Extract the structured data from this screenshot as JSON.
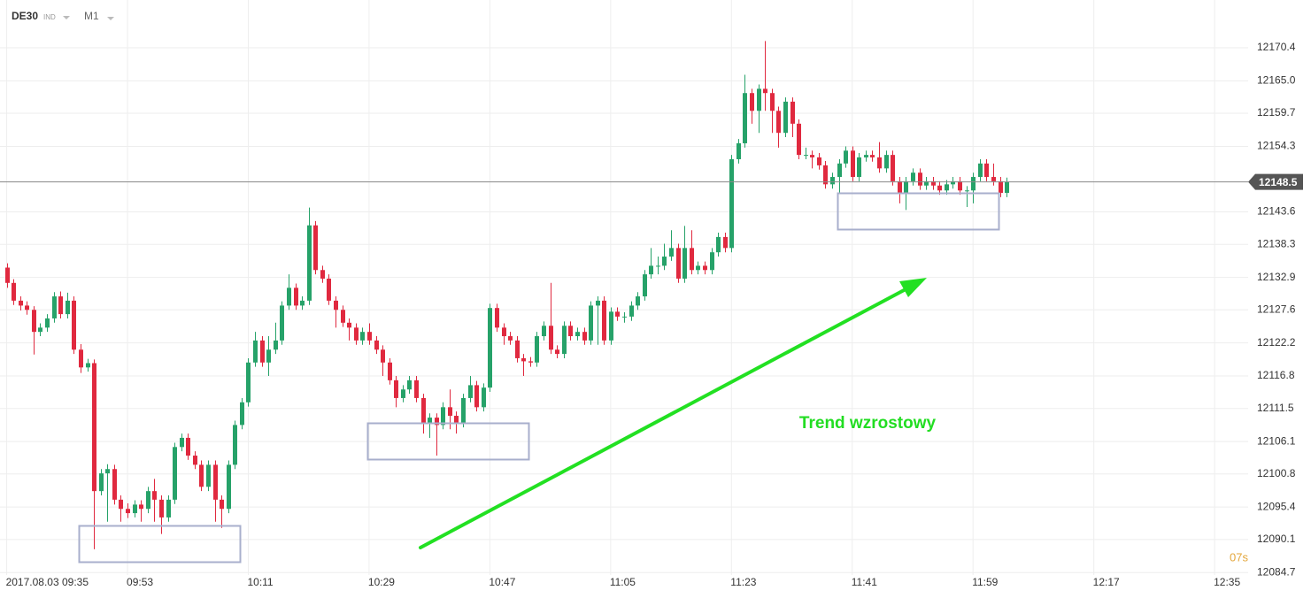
{
  "header": {
    "symbol": "DE30",
    "market": "IND",
    "timeframe": "M1"
  },
  "timer": "07s",
  "chart_data": {
    "type": "candlestick",
    "annotation": "Trend wzrostowy",
    "up_color": "#26a269",
    "down_color": "#e0293f",
    "grid": true,
    "current_price": 12148.5,
    "xlim": [
      574,
      760
    ],
    "xticks": [
      {
        "value": 575,
        "label": "2017.08.03 09:35"
      },
      {
        "value": 593,
        "label": "09:53"
      },
      {
        "value": 611,
        "label": "10:11"
      },
      {
        "value": 629,
        "label": "10:29"
      },
      {
        "value": 647,
        "label": "10:47"
      },
      {
        "value": 665,
        "label": "11:05"
      },
      {
        "value": 683,
        "label": "11:23"
      },
      {
        "value": 701,
        "label": "11:41"
      },
      {
        "value": 719,
        "label": "11:59"
      },
      {
        "value": 737,
        "label": "12:17"
      },
      {
        "value": 755,
        "label": "12:35"
      }
    ],
    "ylim": [
      12084.3,
      12178.2
    ],
    "yticks": [
      12170.4,
      {
        "value": 12165,
        "label": "12165.0"
      },
      12159.7,
      12154.3,
      12143.6,
      12138.3,
      12132.9,
      12127.6,
      12122.2,
      12116.8,
      12111.5,
      12106.1,
      12100.8,
      12095.4,
      12090.1,
      12084.7
    ],
    "x": [
      575,
      576,
      577,
      578,
      579,
      580,
      581,
      582,
      583,
      584,
      585,
      586,
      587,
      588,
      589,
      590,
      591,
      592,
      593,
      594,
      595,
      596,
      597,
      598,
      599,
      600,
      601,
      602,
      603,
      604,
      605,
      606,
      607,
      608,
      609,
      610,
      611,
      612,
      613,
      614,
      615,
      616,
      617,
      618,
      619,
      620,
      621,
      622,
      623,
      624,
      625,
      626,
      627,
      628,
      629,
      630,
      631,
      632,
      633,
      634,
      635,
      636,
      637,
      638,
      639,
      640,
      641,
      642,
      643,
      644,
      645,
      646,
      647,
      648,
      649,
      650,
      651,
      652,
      653,
      654,
      655,
      656,
      657,
      658,
      659,
      660,
      661,
      662,
      663,
      664,
      665,
      666,
      667,
      668,
      669,
      670,
      671,
      672,
      673,
      674,
      675,
      676,
      677,
      678,
      679,
      680,
      681,
      682,
      683,
      684,
      685,
      686,
      687,
      688,
      689,
      690,
      691,
      692,
      693,
      694,
      695,
      696,
      697,
      698,
      699,
      700,
      701,
      702,
      703,
      704,
      705,
      706,
      707,
      708,
      709,
      710,
      711,
      712,
      713,
      714,
      715,
      716,
      717,
      718,
      719,
      720,
      721,
      722,
      723,
      724
    ],
    "open": [
      12134.5,
      12132.0,
      12129.1,
      12128.3,
      12127.6,
      12124.0,
      12124.7,
      12126.2,
      12129.8,
      12126.9,
      12129.1,
      12121.1,
      12118.2,
      12118.9,
      12098.0,
      12100.9,
      12101.6,
      12096.6,
      12095.1,
      12094.4,
      12095.8,
      12095.1,
      12098.0,
      12096.6,
      12093.7,
      12096.6,
      12105.2,
      12106.7,
      12103.8,
      12102.3,
      12098.7,
      12102.3,
      12096.6,
      12095.1,
      12102.3,
      12108.8,
      12112.5,
      12119.0,
      12122.6,
      12119.0,
      12121.1,
      12122.6,
      12128.3,
      12131.2,
      12128.3,
      12129.1,
      12141.4,
      12134.1,
      12132.7,
      12129.1,
      12127.6,
      12125.5,
      12124.7,
      12122.6,
      12124.0,
      12122.6,
      12121.1,
      12119.0,
      12116.1,
      12113.2,
      12114.6,
      12116.1,
      12113.2,
      12109.1,
      12110.0,
      12108.8,
      12111.7,
      12110.3,
      12109.1,
      12113.2,
      12115.3,
      12111.7,
      12114.9,
      12127.9,
      12124.7,
      12123.3,
      12122.6,
      12119.7,
      12119.2,
      12119.0,
      12123.3,
      12125.0,
      12121.1,
      12120.4,
      12125.0,
      12123.3,
      12124.0,
      12122.6,
      12128.3,
      12129.1,
      12122.6,
      12127.3,
      12126.5,
      12126.5,
      12128.3,
      12129.8,
      12133.4,
      12134.8,
      12134.8,
      12136.3,
      12137.7,
      12132.7,
      12137.7,
      12134.1,
      12134.8,
      12134.1,
      12137.0,
      12139.5,
      12137.7,
      12152.2,
      12154.8,
      12163.0,
      12160.1,
      12163.7,
      12163.0,
      12160.1,
      12156.5,
      12161.6,
      12158.0,
      12152.9,
      12152.9,
      12152.5,
      12151.2,
      12148.1,
      12149.3,
      12151.5,
      12153.6,
      12149.3,
      12152.5,
      12152.9,
      12152.5,
      12150.7,
      12152.9,
      12148.6,
      12146.7,
      12148.6,
      12150.0,
      12147.9,
      12148.6,
      12147.9,
      12147.1,
      12148.1,
      12148.6,
      12147.1,
      12147.1,
      12149.3,
      12151.5,
      12149.3,
      12148.6,
      12146.7
    ],
    "high": [
      12135.2,
      12132.6,
      12129.8,
      12129.0,
      12128.2,
      12125.4,
      12126.9,
      12130.5,
      12130.6,
      12130.4,
      12129.8,
      12122.0,
      12119.6,
      12119.5,
      12101.6,
      12102.4,
      12102.3,
      12097.3,
      12096.0,
      12096.5,
      12096.5,
      12098.7,
      12100.0,
      12097.3,
      12097.3,
      12105.9,
      12107.4,
      12107.4,
      12104.5,
      12103.0,
      12103.0,
      12103.0,
      12097.3,
      12103.0,
      12109.5,
      12113.2,
      12119.7,
      12124.0,
      12123.3,
      12123.3,
      12125.5,
      12129.0,
      12133.4,
      12131.9,
      12129.8,
      12144.3,
      12142.1,
      12134.8,
      12133.4,
      12129.8,
      12128.3,
      12126.2,
      12125.4,
      12124.7,
      12125.4,
      12123.3,
      12121.8,
      12119.7,
      12116.8,
      12115.3,
      12116.8,
      12116.8,
      12113.9,
      12110.7,
      12110.7,
      12112.5,
      12114.6,
      12111.0,
      12113.9,
      12116.8,
      12116.0,
      12115.6,
      12128.6,
      12128.6,
      12125.4,
      12124.0,
      12123.3,
      12120.4,
      12119.9,
      12124.0,
      12125.7,
      12132.0,
      12121.8,
      12125.7,
      12125.7,
      12124.7,
      12124.7,
      12129.0,
      12129.8,
      12129.8,
      12128.0,
      12128.0,
      12127.2,
      12129.0,
      12130.5,
      12134.1,
      12137.7,
      12136.3,
      12138.4,
      12140.6,
      12138.4,
      12141.3,
      12140.6,
      12135.5,
      12135.5,
      12137.7,
      12140.2,
      12140.2,
      12152.9,
      12155.5,
      12166.0,
      12163.7,
      12164.4,
      12171.5,
      12163.7,
      12160.8,
      12162.3,
      12162.3,
      12158.7,
      12154.1,
      12153.6,
      12153.2,
      12151.9,
      12150.0,
      12152.2,
      12154.3,
      12154.3,
      12153.2,
      12153.6,
      12153.6,
      12155.0,
      12153.6,
      12153.6,
      12149.3,
      12149.3,
      12150.7,
      12150.7,
      12149.3,
      12149.3,
      12148.6,
      12148.8,
      12149.3,
      12149.3,
      12147.8,
      12150.0,
      12152.2,
      12152.2,
      12151.5,
      12149.3,
      12149.2
    ],
    "low": [
      12131.2,
      12128.4,
      12127.5,
      12126.8,
      12120.3,
      12123.3,
      12124.0,
      12125.5,
      12126.2,
      12126.2,
      12120.4,
      12117.3,
      12117.5,
      12088.5,
      12097.3,
      12093.0,
      12095.8,
      12093.0,
      12093.6,
      12093.7,
      12093.0,
      12094.4,
      12093.0,
      12091.0,
      12093.0,
      12095.9,
      12104.5,
      12103.1,
      12101.6,
      12098.0,
      12098.0,
      12093.0,
      12092.0,
      12094.4,
      12101.6,
      12108.1,
      12111.8,
      12118.3,
      12118.3,
      12116.8,
      12120.4,
      12121.9,
      12127.6,
      12127.6,
      12127.6,
      12128.4,
      12133.4,
      12132.0,
      12128.4,
      12124.7,
      12124.8,
      12122.6,
      12121.9,
      12121.9,
      12121.9,
      12120.4,
      12116.8,
      12115.4,
      12111.7,
      12112.5,
      12113.9,
      12112.5,
      12107.4,
      12106.7,
      12103.8,
      12108.1,
      12108.1,
      12107.4,
      12108.4,
      12112.5,
      12111.0,
      12111.0,
      12114.2,
      12124.0,
      12121.9,
      12121.9,
      12119.0,
      12116.8,
      12118.3,
      12118.3,
      12122.6,
      12120.4,
      12119.7,
      12119.7,
      12122.6,
      12122.6,
      12121.9,
      12121.9,
      12121.9,
      12121.9,
      12121.9,
      12125.8,
      12125.5,
      12125.8,
      12127.6,
      12129.1,
      12132.7,
      12133.4,
      12134.1,
      12135.6,
      12132.0,
      12132.0,
      12133.4,
      12133.4,
      12133.4,
      12133.4,
      12136.3,
      12137.0,
      12137.0,
      12151.5,
      12154.1,
      12158.0,
      12156.5,
      12160.1,
      12156.5,
      12154.1,
      12155.8,
      12155.8,
      12152.2,
      12152.2,
      12150.7,
      12150.5,
      12147.4,
      12147.4,
      12146.7,
      12150.8,
      12148.6,
      12148.6,
      12151.8,
      12151.8,
      12150.0,
      12150.0,
      12147.9,
      12145.0,
      12143.9,
      12147.9,
      12147.2,
      12147.2,
      12147.2,
      12146.4,
      12146.4,
      12147.4,
      12146.4,
      12144.4,
      12145.0,
      12148.6,
      12148.6,
      12147.9,
      12146.0,
      12146.0
    ],
    "close": [
      12132.0,
      12129.1,
      12128.3,
      12127.6,
      12124.0,
      12124.7,
      12126.2,
      12129.8,
      12126.9,
      12129.1,
      12121.1,
      12118.2,
      12118.9,
      12098.0,
      12100.9,
      12101.6,
      12096.6,
      12095.1,
      12094.4,
      12095.8,
      12095.1,
      12098.0,
      12096.6,
      12093.7,
      12096.6,
      12105.2,
      12106.7,
      12103.8,
      12102.3,
      12098.7,
      12102.3,
      12096.6,
      12095.1,
      12102.3,
      12108.8,
      12112.5,
      12119.0,
      12122.6,
      12119.0,
      12121.1,
      12122.6,
      12128.3,
      12131.2,
      12128.3,
      12129.1,
      12141.4,
      12134.1,
      12132.7,
      12129.1,
      12127.6,
      12125.5,
      12124.7,
      12122.6,
      12124.0,
      12122.6,
      12121.1,
      12119.0,
      12116.1,
      12113.2,
      12114.6,
      12116.1,
      12113.2,
      12109.1,
      12110.0,
      12108.8,
      12111.7,
      12110.3,
      12109.1,
      12113.2,
      12115.3,
      12111.7,
      12114.9,
      12127.9,
      12124.7,
      12123.3,
      12122.6,
      12119.7,
      12119.2,
      12119.0,
      12123.3,
      12125.0,
      12121.1,
      12120.4,
      12125.0,
      12123.3,
      12124.0,
      12122.6,
      12128.3,
      12129.1,
      12122.6,
      12127.3,
      12126.5,
      12126.5,
      12128.3,
      12129.8,
      12133.4,
      12134.8,
      12134.8,
      12136.3,
      12137.7,
      12132.7,
      12137.7,
      12134.1,
      12134.8,
      12134.1,
      12137.0,
      12139.5,
      12137.7,
      12152.2,
      12154.8,
      12163.0,
      12160.1,
      12163.7,
      12163.0,
      12160.1,
      12156.5,
      12161.6,
      12158.0,
      12152.9,
      12152.9,
      12152.5,
      12151.2,
      12148.1,
      12149.3,
      12151.5,
      12153.6,
      12149.3,
      12152.5,
      12152.9,
      12152.5,
      12150.7,
      12152.9,
      12148.6,
      12146.7,
      12148.6,
      12150.0,
      12147.9,
      12148.6,
      12147.9,
      12147.1,
      12148.1,
      12148.6,
      12147.1,
      12147.1,
      12149.3,
      12151.5,
      12149.3,
      12148.6,
      12146.7,
      12148.5
    ]
  }
}
